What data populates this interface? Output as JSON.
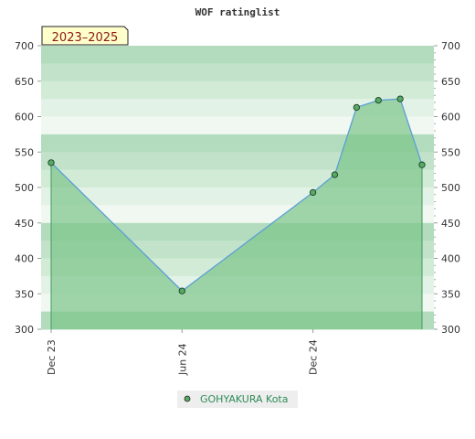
{
  "chart_data": {
    "type": "area",
    "title": "WOF ratinglist",
    "period_label": "2023–2025",
    "ylim": [
      300,
      700
    ],
    "yticks": [
      300,
      350,
      400,
      450,
      500,
      550,
      600,
      650,
      700
    ],
    "x_tick_labels": [
      "Dec 23",
      "Jun 24",
      "Dec 24"
    ],
    "grid": true,
    "legend_position": "bottom",
    "series": [
      {
        "name": "GOHYAKURA Kota",
        "color": "#5a9fd4",
        "marker_color": "#55aa66",
        "fill_color": "#7cc48a",
        "points": [
          {
            "x": "2023-12",
            "y": 535
          },
          {
            "x": "2024-06",
            "y": 354
          },
          {
            "x": "2024-12",
            "y": 493
          },
          {
            "x": "2025-01",
            "y": 518
          },
          {
            "x": "2025-02",
            "y": 613
          },
          {
            "x": "2025-03",
            "y": 623
          },
          {
            "x": "2025-04",
            "y": 625
          },
          {
            "x": "2025-05",
            "y": 532
          }
        ]
      }
    ]
  }
}
